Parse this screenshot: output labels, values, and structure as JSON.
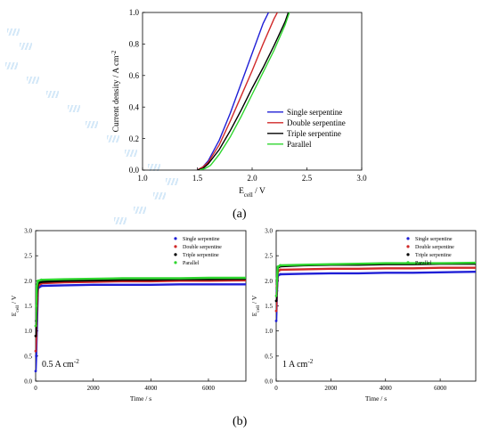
{
  "panel_labels": {
    "a": "(a)",
    "b": "(b)"
  },
  "colors": {
    "single": "#1f1fd6",
    "double": "#d02828",
    "triple": "#000000",
    "parallel": "#2fd62f",
    "axis": "#000000"
  },
  "chart_data": [
    {
      "id": "a",
      "type": "line",
      "xlabel": "E_cell / V",
      "ylabel": "Current density / A cm^-2",
      "xlim": [
        1.0,
        3.0
      ],
      "ylim": [
        0.0,
        1.0
      ],
      "xticks": [
        "1.0",
        "1.5",
        "2.0",
        "2.5",
        "3.0"
      ],
      "yticks": [
        "0.0",
        "0.2",
        "0.4",
        "0.6",
        "0.8",
        "1.0"
      ],
      "legend": {
        "position": "bottom-right",
        "entries": [
          "Single serpentine",
          "Double serpentine",
          "Triple serpentine",
          "Parallel"
        ]
      },
      "series": [
        {
          "name": "Single serpentine",
          "color": "#1f1fd6",
          "x": [
            1.5,
            1.55,
            1.6,
            1.7,
            1.8,
            1.9,
            2.0,
            2.1,
            2.15
          ],
          "y": [
            0.0,
            0.02,
            0.06,
            0.19,
            0.36,
            0.55,
            0.74,
            0.93,
            1.0
          ]
        },
        {
          "name": "Double serpentine",
          "color": "#d02828",
          "x": [
            1.5,
            1.55,
            1.6,
            1.7,
            1.8,
            1.9,
            2.0,
            2.1,
            2.2,
            2.23
          ],
          "y": [
            0.0,
            0.02,
            0.05,
            0.16,
            0.31,
            0.47,
            0.63,
            0.8,
            0.96,
            1.0
          ]
        },
        {
          "name": "Triple serpentine",
          "color": "#000000",
          "x": [
            1.5,
            1.55,
            1.6,
            1.7,
            1.8,
            1.9,
            2.0,
            2.1,
            2.2,
            2.3,
            2.33
          ],
          "y": [
            0.0,
            0.01,
            0.04,
            0.13,
            0.25,
            0.38,
            0.52,
            0.65,
            0.79,
            0.94,
            1.0
          ]
        },
        {
          "name": "Parallel",
          "color": "#2fd62f",
          "x": [
            1.52,
            1.57,
            1.62,
            1.7,
            1.8,
            1.9,
            2.0,
            2.1,
            2.2,
            2.3,
            2.34
          ],
          "y": [
            0.0,
            0.01,
            0.03,
            0.1,
            0.21,
            0.34,
            0.48,
            0.62,
            0.76,
            0.92,
            1.0
          ]
        }
      ]
    },
    {
      "id": "b-left",
      "type": "scatter",
      "annotation": "0.5 A cm^-2",
      "xlabel": "Time / s",
      "ylabel": "E_cell / V",
      "xlim": [
        0,
        7300
      ],
      "ylim": [
        0.0,
        3.0
      ],
      "xticks": [
        "0",
        "2000",
        "4000",
        "6000"
      ],
      "yticks": [
        "0.0",
        "0.5",
        "1.0",
        "1.5",
        "2.0",
        "2.5",
        "3.0"
      ],
      "legend": {
        "position": "top-right",
        "entries": [
          "Single serpentine",
          "Double serpentine",
          "Triple serpentine",
          "Parallel"
        ]
      },
      "series": [
        {
          "name": "Single serpentine",
          "color": "#1f1fd6",
          "x": [
            0,
            20,
            40,
            80,
            200,
            1000,
            2000,
            3000,
            4000,
            5000,
            6000,
            7300
          ],
          "y": [
            0.2,
            0.5,
            1.0,
            1.85,
            1.9,
            1.91,
            1.92,
            1.92,
            1.92,
            1.93,
            1.93,
            1.93
          ]
        },
        {
          "name": "Double serpentine",
          "color": "#d02828",
          "x": [
            0,
            20,
            40,
            80,
            200,
            1000,
            2000,
            3000,
            4000,
            5000,
            6000,
            7300
          ],
          "y": [
            0.6,
            0.9,
            1.4,
            1.9,
            1.95,
            1.97,
            1.98,
            1.99,
            1.99,
            2.0,
            2.0,
            2.01
          ]
        },
        {
          "name": "Triple serpentine",
          "color": "#000000",
          "x": [
            0,
            20,
            40,
            80,
            200,
            1000,
            2000,
            3000,
            4000,
            5000,
            6000,
            7300
          ],
          "y": [
            0.9,
            1.2,
            1.7,
            1.95,
            1.98,
            2.0,
            2.01,
            2.02,
            2.02,
            2.03,
            2.03,
            2.04
          ]
        },
        {
          "name": "Parallel",
          "color": "#2fd62f",
          "x": [
            0,
            20,
            40,
            80,
            200,
            1000,
            2000,
            3000,
            4000,
            5000,
            6000,
            7300
          ],
          "y": [
            1.1,
            1.5,
            1.9,
            2.0,
            2.02,
            2.03,
            2.04,
            2.05,
            2.05,
            2.05,
            2.06,
            2.06
          ]
        }
      ]
    },
    {
      "id": "b-right",
      "type": "scatter",
      "annotation": "1 A cm^-2",
      "xlabel": "Time / s",
      "ylabel": "E_cell / V",
      "xlim": [
        0,
        7300
      ],
      "ylim": [
        0.0,
        3.0
      ],
      "xticks": [
        "0",
        "2000",
        "4000",
        "6000"
      ],
      "yticks": [
        "0.0",
        "0.5",
        "1.0",
        "1.5",
        "2.0",
        "2.5",
        "3.0"
      ],
      "legend": {
        "position": "top-right",
        "entries": [
          "Single serpentine",
          "Double serpentine",
          "Triple serpentine",
          "Parallel"
        ]
      },
      "series": [
        {
          "name": "Single serpentine",
          "color": "#1f1fd6",
          "x": [
            0,
            30,
            60,
            150,
            1000,
            2000,
            3000,
            4000,
            5000,
            6000,
            7300
          ],
          "y": [
            1.2,
            1.8,
            2.1,
            2.13,
            2.14,
            2.15,
            2.15,
            2.16,
            2.16,
            2.17,
            2.18
          ]
        },
        {
          "name": "Double serpentine",
          "color": "#d02828",
          "x": [
            0,
            30,
            60,
            150,
            1000,
            2000,
            3000,
            4000,
            5000,
            6000,
            7300
          ],
          "y": [
            1.4,
            1.9,
            2.18,
            2.22,
            2.23,
            2.24,
            2.24,
            2.25,
            2.25,
            2.26,
            2.26
          ]
        },
        {
          "name": "Triple serpentine",
          "color": "#000000",
          "x": [
            0,
            30,
            60,
            150,
            1000,
            2000,
            3000,
            4000,
            5000,
            6000,
            7300
          ],
          "y": [
            1.6,
            2.0,
            2.26,
            2.29,
            2.31,
            2.32,
            2.32,
            2.33,
            2.33,
            2.34,
            2.34
          ]
        },
        {
          "name": "Parallel",
          "color": "#2fd62f",
          "x": [
            0,
            30,
            60,
            150,
            1000,
            2000,
            3000,
            4000,
            5000,
            6000,
            7300
          ],
          "y": [
            1.7,
            2.05,
            2.28,
            2.31,
            2.32,
            2.33,
            2.34,
            2.35,
            2.35,
            2.35,
            2.36
          ]
        }
      ]
    }
  ]
}
